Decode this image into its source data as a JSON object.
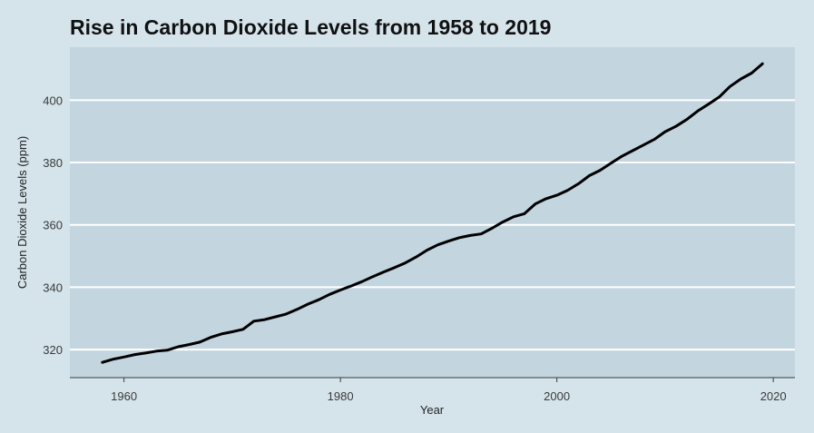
{
  "chart_data": {
    "type": "line",
    "title": "Rise in Carbon Dioxide Levels from 1958 to 2019",
    "xlabel": "Year",
    "ylabel": "Carbon Dioxide Levels (ppm)",
    "xlim": [
      1955,
      2022
    ],
    "ylim": [
      311,
      417
    ],
    "xticks": [
      1960,
      1980,
      2000,
      2020
    ],
    "yticks": [
      320,
      340,
      360,
      380,
      400
    ],
    "grid": "horizontal",
    "colors": {
      "plot_background": "#c3d5df",
      "page_background": "#d5e4eb",
      "line": "#000000",
      "grid": "#ffffff"
    },
    "series": [
      {
        "x": [
          1958,
          1959,
          1960,
          1961,
          1962,
          1963,
          1964,
          1965,
          1966,
          1967,
          1968,
          1969,
          1970,
          1971,
          1972,
          1973,
          1974,
          1975,
          1976,
          1977,
          1978,
          1979,
          1980,
          1981,
          1982,
          1983,
          1984,
          1985,
          1986,
          1987,
          1988,
          1989,
          1990,
          1991,
          1992,
          1993,
          1994,
          1995,
          1996,
          1997,
          1998,
          1999,
          2000,
          2001,
          2002,
          2003,
          2004,
          2005,
          2006,
          2007,
          2008,
          2009,
          2010,
          2011,
          2012,
          2013,
          2014,
          2015,
          2016,
          2017,
          2018,
          2019
        ],
        "y": [
          315.9,
          316.9,
          317.6,
          318.4,
          318.9,
          319.5,
          319.8,
          320.9,
          321.6,
          322.4,
          323.9,
          325.0,
          325.7,
          326.5,
          329.1,
          329.6,
          330.5,
          331.4,
          332.9,
          334.6,
          336.0,
          337.7,
          339.1,
          340.4,
          341.8,
          343.4,
          344.9,
          346.3,
          347.8,
          349.7,
          351.9,
          353.6,
          354.8,
          355.9,
          356.6,
          357.1,
          358.9,
          360.9,
          362.6,
          363.6,
          366.7,
          368.4,
          369.5,
          371.1,
          373.2,
          375.8,
          377.5,
          379.8,
          382.0,
          383.8,
          385.6,
          387.4,
          389.9,
          391.6,
          393.8,
          396.5,
          398.7,
          401.0,
          404.4,
          406.8,
          408.7,
          411.7
        ]
      }
    ]
  }
}
